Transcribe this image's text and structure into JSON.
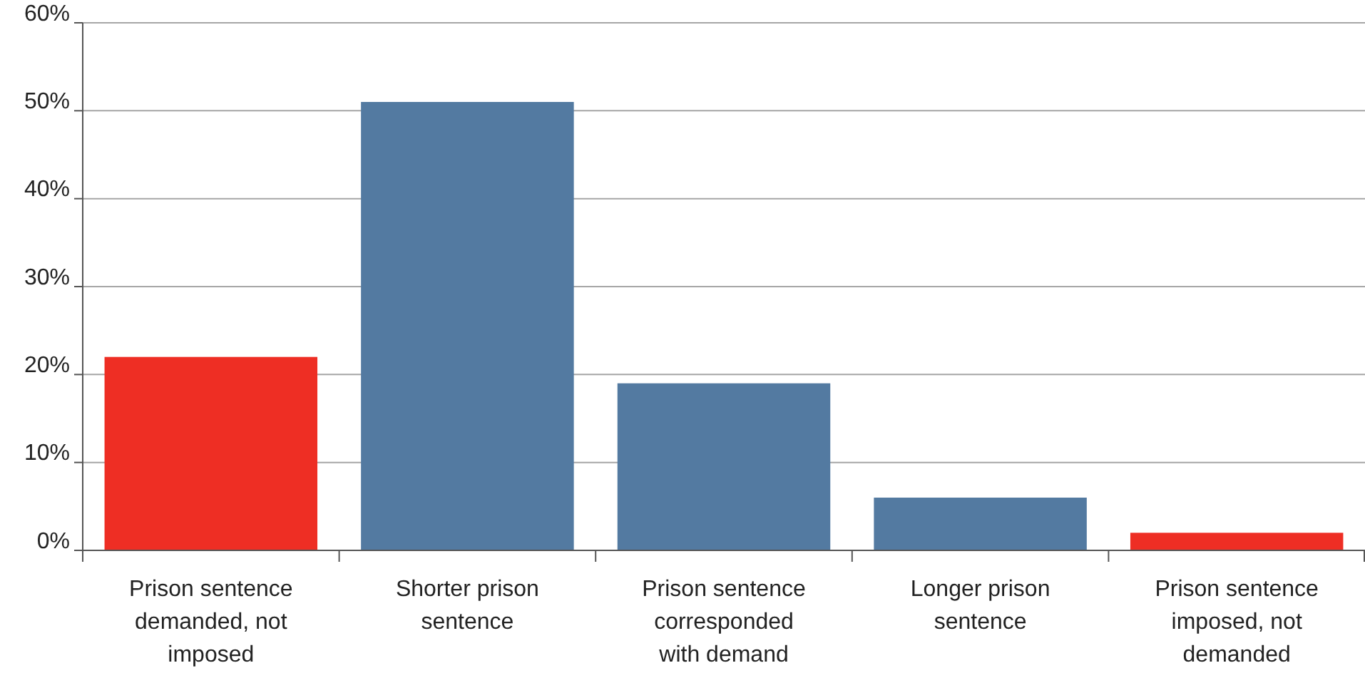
{
  "chart_data": {
    "type": "bar",
    "categories": [
      "Prison sentence demanded, not imposed",
      "Shorter prison sentence",
      "Prison sentence corresponded with demand",
      "Longer prison sentence",
      "Prison sentence imposed, not demanded"
    ],
    "values": [
      22,
      51,
      19,
      6,
      2
    ],
    "colors": [
      "#ee2e24",
      "#537aa1",
      "#537aa1",
      "#537aa1",
      "#ee2e24"
    ],
    "ylim": [
      0,
      60
    ],
    "yticks": [
      {
        "value": 0,
        "label": "0%"
      },
      {
        "value": 10,
        "label": "10%"
      },
      {
        "value": 20,
        "label": "20%"
      },
      {
        "value": 30,
        "label": "30%"
      },
      {
        "value": 40,
        "label": "40%"
      },
      {
        "value": 50,
        "label": "50%"
      },
      {
        "value": 60,
        "label": "60%"
      }
    ],
    "grid": "y"
  }
}
